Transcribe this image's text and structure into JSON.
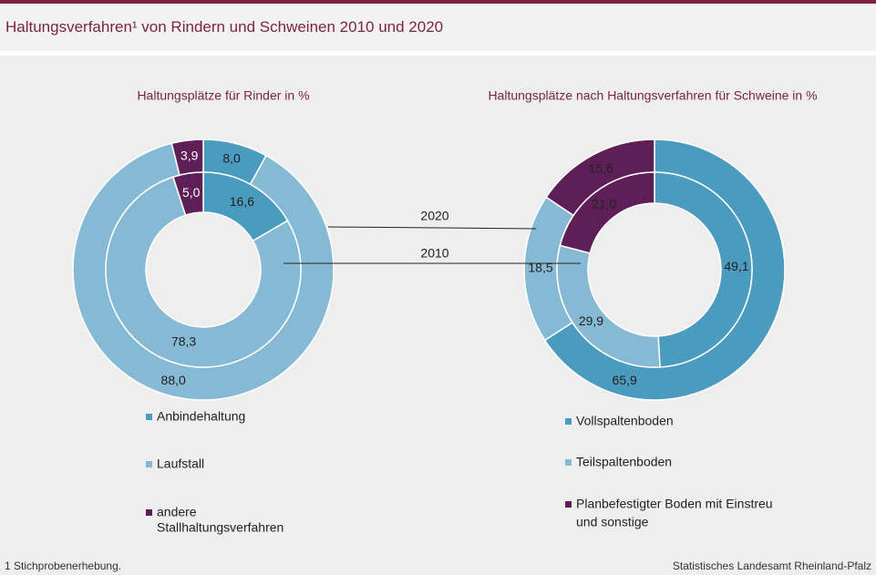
{
  "title": "Haltungsverfahren¹ von Rindern und Schweinen 2010 und 2020",
  "footnote": "1 Stichprobenerhebung.",
  "source": "Statistisches Landesamt Rheinland-Pfalz",
  "colors": {
    "brand": "#7a2440",
    "dark_blue": "#4b9bbf",
    "light_blue": "#86b9d3",
    "purple": "#5e1f57",
    "background": "#eeeeee"
  },
  "chart_data": [
    {
      "type": "donut",
      "title": "Haltungsplätze  für Rinder in %",
      "rings": [
        {
          "name": "2020",
          "ring": "outer"
        },
        {
          "name": "2010",
          "ring": "inner"
        }
      ],
      "series": [
        {
          "name": "2020",
          "categories": [
            "Anbindehaltung",
            "Laufstall",
            "andere Stallhaltungsverfahren"
          ],
          "values": [
            8.0,
            88.0,
            3.9
          ],
          "labels": [
            "8,0",
            "88,0",
            "3,9"
          ]
        },
        {
          "name": "2010",
          "categories": [
            "Anbindehaltung",
            "Laufstall",
            "andere Stallhaltungsverfahren"
          ],
          "values": [
            16.6,
            78.3,
            5.0
          ],
          "labels": [
            "16,6",
            "78,3",
            "5,0"
          ]
        }
      ],
      "legend": [
        "Anbindehaltung",
        "Laufstall",
        "andere Stallhaltungsverfahren"
      ],
      "legend_placement": "bottom"
    },
    {
      "type": "donut",
      "title": "Haltungsplätze  nach Haltungsverfahren  für Schweine in %",
      "rings": [
        {
          "name": "2020",
          "ring": "outer"
        },
        {
          "name": "2010",
          "ring": "inner"
        }
      ],
      "series": [
        {
          "name": "2020",
          "categories": [
            "Vollspaltenboden",
            "Teilspaltenboden",
            "Planbefestigter Boden mit Einstreu und sonstige"
          ],
          "values": [
            65.9,
            18.5,
            15.6
          ],
          "labels": [
            "65,9",
            "18,5",
            "15,6"
          ]
        },
        {
          "name": "2010",
          "categories": [
            "Vollspaltenboden",
            "Teilspaltenboden",
            "Planbefestigter Boden mit Einstreu und sonstige"
          ],
          "values": [
            49.1,
            29.9,
            21.0
          ],
          "labels": [
            "49,1",
            "29,9",
            "21,0"
          ]
        }
      ],
      "legend": [
        "Vollspaltenboden",
        "Teilspaltenboden",
        "Planbefestigter Boden mit Einstreu und sonstige"
      ],
      "legend_placement": "bottom"
    }
  ]
}
